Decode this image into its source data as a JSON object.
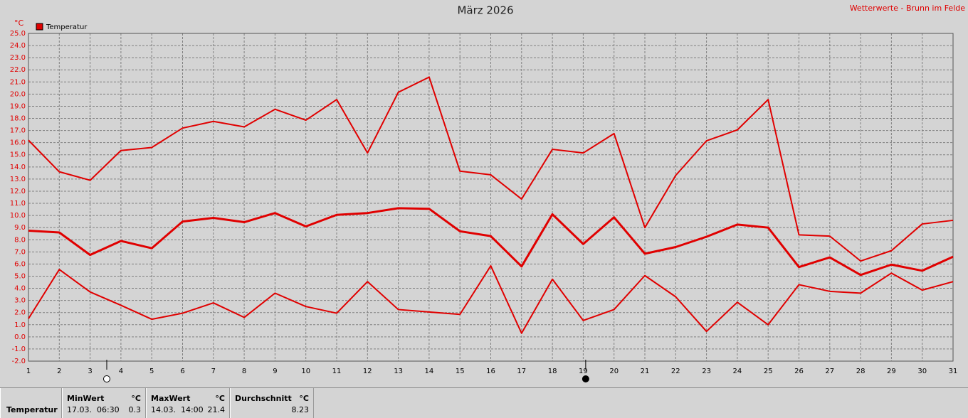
{
  "chart_data": {
    "type": "line",
    "title": "März 2026",
    "source": "Wetterwerte - Brunn im Felde",
    "unit": "°C",
    "legend": {
      "label": "Temperatur",
      "color": "#e00000"
    },
    "x": [
      1,
      2,
      3,
      4,
      5,
      6,
      7,
      8,
      9,
      10,
      11,
      12,
      13,
      14,
      15,
      16,
      17,
      18,
      19,
      20,
      21,
      22,
      23,
      24,
      25,
      26,
      27,
      28,
      29,
      30,
      31
    ],
    "xlim": [
      1,
      31
    ],
    "xticks": [
      1,
      2,
      3,
      4,
      5,
      6,
      7,
      8,
      9,
      10,
      11,
      12,
      13,
      14,
      15,
      16,
      17,
      18,
      19,
      20,
      21,
      22,
      23,
      24,
      25,
      26,
      27,
      28,
      29,
      30,
      31
    ],
    "ylim": [
      -2,
      25
    ],
    "yticks": [
      {
        "value": 25,
        "label": "25.0"
      },
      {
        "value": 24,
        "label": "24.0"
      },
      {
        "value": 23,
        "label": "23.0"
      },
      {
        "value": 22,
        "label": "22.0"
      },
      {
        "value": 21,
        "label": "21.0"
      },
      {
        "value": 20,
        "label": "20.0"
      },
      {
        "value": 19,
        "label": "19.0"
      },
      {
        "value": 18,
        "label": "18.0"
      },
      {
        "value": 17,
        "label": "17.0"
      },
      {
        "value": 16,
        "label": "16.0"
      },
      {
        "value": 15,
        "label": "15.0"
      },
      {
        "value": 14,
        "label": "14.0"
      },
      {
        "value": 13,
        "label": "13.0"
      },
      {
        "value": 12,
        "label": "12.0"
      },
      {
        "value": 11,
        "label": "11.0"
      },
      {
        "value": 10,
        "label": "10.0"
      },
      {
        "value": 9,
        "label": "9.0"
      },
      {
        "value": 8,
        "label": "8.0"
      },
      {
        "value": 7,
        "label": "7.0"
      },
      {
        "value": 6,
        "label": "6.0"
      },
      {
        "value": 5,
        "label": "5.0"
      },
      {
        "value": 4,
        "label": "4.0"
      },
      {
        "value": 3,
        "label": "3.0"
      },
      {
        "value": 2,
        "label": "2.0"
      },
      {
        "value": 1,
        "label": "1.0"
      },
      {
        "value": 0,
        "label": "0.0"
      },
      {
        "value": -1,
        "label": "-1.0"
      },
      {
        "value": -2,
        "label": "-2.0"
      }
    ],
    "grid": true,
    "series": [
      {
        "color": "#e00000",
        "line_width": 2,
        "values": [
          16.2,
          13.6,
          12.9,
          15.35,
          15.6,
          17.2,
          17.75,
          17.3,
          18.75,
          17.85,
          19.55,
          15.15,
          20.15,
          21.4,
          13.65,
          13.35,
          11.35,
          15.45,
          15.15,
          16.75,
          9.0,
          13.3,
          16.15,
          17.05,
          19.55,
          8.4,
          8.3,
          6.25,
          7.1,
          9.3,
          9.6
        ]
      },
      {
        "color": "#e00000",
        "line_width": 3,
        "values": [
          8.75,
          8.6,
          6.75,
          7.9,
          7.3,
          9.5,
          9.8,
          9.45,
          10.2,
          9.1,
          10.05,
          10.2,
          10.6,
          10.55,
          8.7,
          8.3,
          5.8,
          10.1,
          7.65,
          9.85,
          6.85,
          7.4,
          8.25,
          9.25,
          9.0,
          5.75,
          6.55,
          5.1,
          5.95,
          5.45,
          6.6
        ]
      },
      {
        "color": "#e00000",
        "line_width": 2,
        "values": [
          1.5,
          5.55,
          3.7,
          2.6,
          1.45,
          1.95,
          2.8,
          1.6,
          3.6,
          2.5,
          1.95,
          4.55,
          2.25,
          2.05,
          1.85,
          5.85,
          0.3,
          4.75,
          1.35,
          2.25,
          5.05,
          3.3,
          0.45,
          2.85,
          1.0,
          4.3,
          3.75,
          3.6,
          5.25,
          3.85,
          4.55
        ]
      }
    ],
    "markers": [
      {
        "x": 3.54,
        "filled": false
      },
      {
        "x": 19.08,
        "filled": true
      }
    ]
  },
  "stats": {
    "label": "Temperatur",
    "min": {
      "title": "MinWert",
      "unit": "°C",
      "time": "17.03.  06:30",
      "value": 0.3
    },
    "max": {
      "title": "MaxWert",
      "unit": "°C",
      "time": "14.03.  14:00",
      "value": 21.4
    },
    "avg": {
      "title": "Durchschnitt",
      "unit": "°C",
      "value": 8.23
    }
  }
}
